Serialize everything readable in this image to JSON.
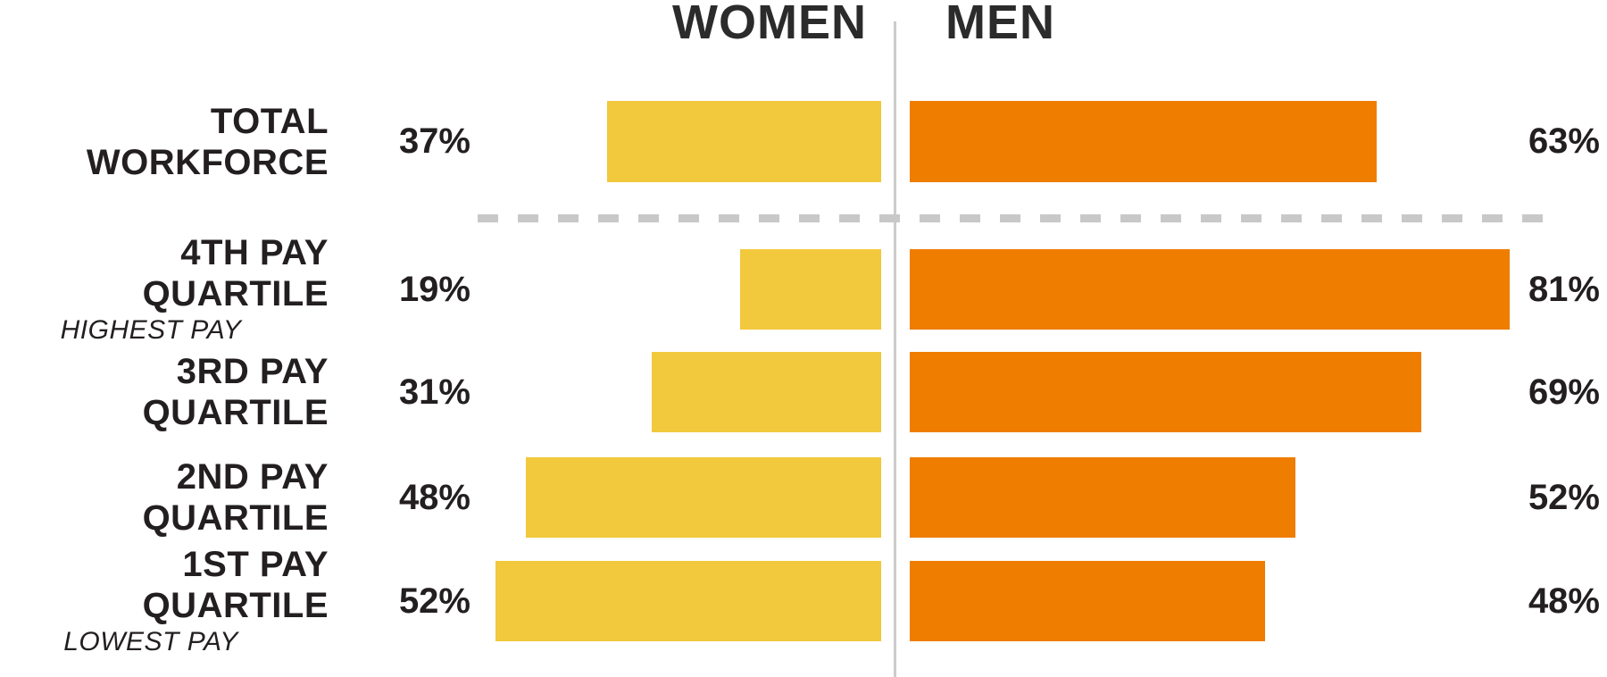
{
  "header": {
    "women": "WOMEN",
    "men": "MEN"
  },
  "colors": {
    "women_bar": "#F2C83D",
    "men_bar": "#EF7D00",
    "divider_line": "#CBCBCB",
    "dashed_line": "#C8C8C8",
    "text": "#231F20"
  },
  "icons": {},
  "rows": [
    {
      "label": "TOTAL WORKFORCE",
      "sublabel": "",
      "women_pct": "37%",
      "men_pct": "63%",
      "women": 37,
      "men": 63
    },
    {
      "label": "4TH PAY QUARTILE",
      "sublabel": "HIGHEST PAY",
      "women_pct": "19%",
      "men_pct": "81%",
      "women": 19,
      "men": 81
    },
    {
      "label": "3RD PAY QUARTILE",
      "sublabel": "",
      "women_pct": "31%",
      "men_pct": "69%",
      "women": 31,
      "men": 69
    },
    {
      "label": "2ND PAY QUARTILE",
      "sublabel": "",
      "women_pct": "48%",
      "men_pct": "52%",
      "women": 48,
      "men": 52
    },
    {
      "label": "1ST PAY QUARTILE",
      "sublabel": "LOWEST PAY",
      "women_pct": "52%",
      "men_pct": "48%",
      "women": 52,
      "men": 48
    }
  ],
  "chart_data": {
    "type": "bar",
    "orientation": "diverging-horizontal",
    "title": "",
    "categories": [
      "TOTAL WORKFORCE",
      "4TH PAY QUARTILE",
      "3RD PAY QUARTILE",
      "2ND PAY QUARTILE",
      "1ST PAY QUARTILE"
    ],
    "category_sublabels": [
      "",
      "HIGHEST PAY",
      "",
      "",
      "LOWEST PAY"
    ],
    "series": [
      {
        "name": "WOMEN",
        "values": [
          37,
          19,
          31,
          48,
          52
        ],
        "color": "#F2C83D"
      },
      {
        "name": "MEN",
        "values": [
          63,
          81,
          69,
          52,
          48
        ],
        "color": "#EF7D00"
      }
    ],
    "unit": "%",
    "value_range": [
      0,
      100
    ],
    "grid": false,
    "legend_position": "top-center-split",
    "notes": "Dashed horizontal separator between TOTAL WORKFORCE row and the quartile rows; bars diverge from a central vertical axis line."
  }
}
